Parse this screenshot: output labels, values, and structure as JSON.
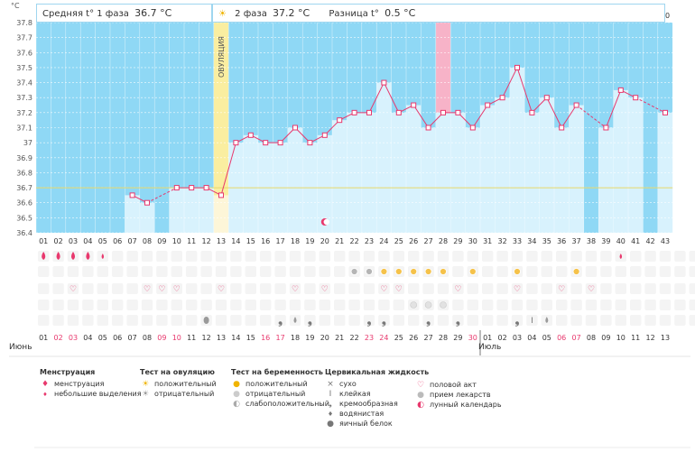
{
  "header": {
    "phase1_label": "Средняя t° 1 фаза",
    "phase1_value": "36.7 °C",
    "phase2_label": "2 фаза",
    "phase2_value": "37.2 °C",
    "diff_label": "Разница t°",
    "diff_value": "0.5 °C",
    "unit": "°C"
  },
  "months": {
    "first": "Июнь",
    "second": "Июль"
  },
  "ovulation_label": "ОВУЛЯЦИЯ",
  "chart_data": {
    "type": "line",
    "ylim": [
      36.4,
      37.8
    ],
    "yticks": [
      "36.4",
      "36.5",
      "36.6",
      "36.7",
      "36.8",
      "36.9",
      "37",
      "37.1",
      "37.2",
      "37.3",
      "37.4",
      "37.5",
      "37.6",
      "37.7",
      "37.8"
    ],
    "cycle_days": [
      "01",
      "02",
      "03",
      "04",
      "05",
      "06",
      "07",
      "08",
      "09",
      "10",
      "11",
      "12",
      "13",
      "14",
      "15",
      "16",
      "17",
      "18",
      "19",
      "20",
      "21",
      "22",
      "23",
      "24",
      "25",
      "26",
      "27",
      "28",
      "29",
      "30",
      "31",
      "32",
      "33",
      "34",
      "35",
      "36",
      "37",
      "38",
      "39",
      "40",
      "41",
      "42",
      "43"
    ],
    "phase2_days": [
      "01",
      "02",
      "03",
      "04",
      "05",
      "06",
      "07",
      "08",
      "09",
      "10",
      "11",
      "12",
      "13",
      "14",
      "15",
      "16",
      "17",
      "18",
      "19",
      "20",
      "21",
      "22",
      "23",
      "24",
      "25",
      "26",
      "27",
      "28",
      "29",
      "30"
    ],
    "calendar_dates": [
      "01",
      "02",
      "03",
      "04",
      "05",
      "06",
      "07",
      "08",
      "09",
      "10",
      "11",
      "12",
      "13",
      "14",
      "15",
      "16",
      "17",
      "18",
      "19",
      "20",
      "21",
      "22",
      "23",
      "24",
      "25",
      "26",
      "27",
      "28",
      "29",
      "30",
      "01",
      "02",
      "03",
      "04",
      "05",
      "06",
      "07",
      "08",
      "09",
      "10",
      "11",
      "12",
      "13"
    ],
    "weekend_indices": [
      1,
      2,
      8,
      9,
      15,
      16,
      22,
      23,
      29,
      35,
      36
    ],
    "temperatures": [
      null,
      null,
      null,
      null,
      null,
      null,
      36.65,
      36.6,
      null,
      36.7,
      36.7,
      36.7,
      36.65,
      37.0,
      37.05,
      37.0,
      37.0,
      37.1,
      37.0,
      37.05,
      37.15,
      37.2,
      37.2,
      37.4,
      37.2,
      37.25,
      37.1,
      37.2,
      37.2,
      37.1,
      37.25,
      37.3,
      37.5,
      37.2,
      37.3,
      37.1,
      37.25,
      null,
      37.1,
      37.35,
      37.3,
      null,
      37.2
    ],
    "average_line": 36.7,
    "ovulation_day_index": 12,
    "highlight_day_index": 27
  },
  "tracker": {
    "menstruation": [
      [
        0,
        "big"
      ],
      [
        1,
        "big"
      ],
      [
        2,
        "big"
      ],
      [
        3,
        "big"
      ],
      [
        4,
        "small"
      ],
      [
        39,
        "small"
      ]
    ],
    "ovulation_test": [
      [
        21,
        "neg"
      ],
      [
        22,
        "neg"
      ],
      [
        23,
        "pos"
      ],
      [
        24,
        "pos"
      ],
      [
        25,
        "pos"
      ],
      [
        26,
        "pos"
      ],
      [
        27,
        "pos"
      ],
      [
        29,
        "pos"
      ],
      [
        32,
        "pos"
      ],
      [
        36,
        "pos"
      ]
    ],
    "heart": [
      2,
      7,
      8,
      9,
      12,
      17,
      19,
      23,
      24,
      28,
      32,
      35,
      37,
      45
    ],
    "pregnancy_test": [
      [
        25,
        "neg"
      ],
      [
        26,
        "neg"
      ],
      [
        27,
        "neg"
      ]
    ],
    "fluid": [
      [
        11,
        "egg"
      ],
      [
        16,
        "creamy"
      ],
      [
        17,
        "water"
      ],
      [
        18,
        "creamy"
      ],
      [
        22,
        "creamy"
      ],
      [
        23,
        "creamy"
      ],
      [
        26,
        "creamy"
      ],
      [
        28,
        "creamy"
      ],
      [
        32,
        "creamy"
      ],
      [
        33,
        "sticky"
      ],
      [
        34,
        "water"
      ]
    ],
    "moon_day_index": 19
  },
  "legend": {
    "menstruation": {
      "title": "Менструация",
      "items": [
        "менструация",
        "небольшие выделения"
      ]
    },
    "ovulation": {
      "title": "Тест на овуляцию",
      "items": [
        "положительный",
        "отрицательный"
      ]
    },
    "pregnancy": {
      "title": "Тест на беременность",
      "items": [
        "положительный",
        "отрицательный",
        "слабоположительный"
      ]
    },
    "fluid": {
      "title": "Цервикальная жидкость",
      "items": [
        "сухо",
        "клейкая",
        "кремообразная",
        "водянистая",
        "яичный белок"
      ]
    },
    "other": {
      "items": [
        "половой акт",
        "прием лекарств",
        "лунный календарь"
      ]
    }
  },
  "colors": {
    "accent": "#e8386d",
    "sky": "#8fd8f5",
    "bar": "#d8f2fd",
    "ovulation": "#faeea0",
    "highlight": "#f7b3c8"
  }
}
